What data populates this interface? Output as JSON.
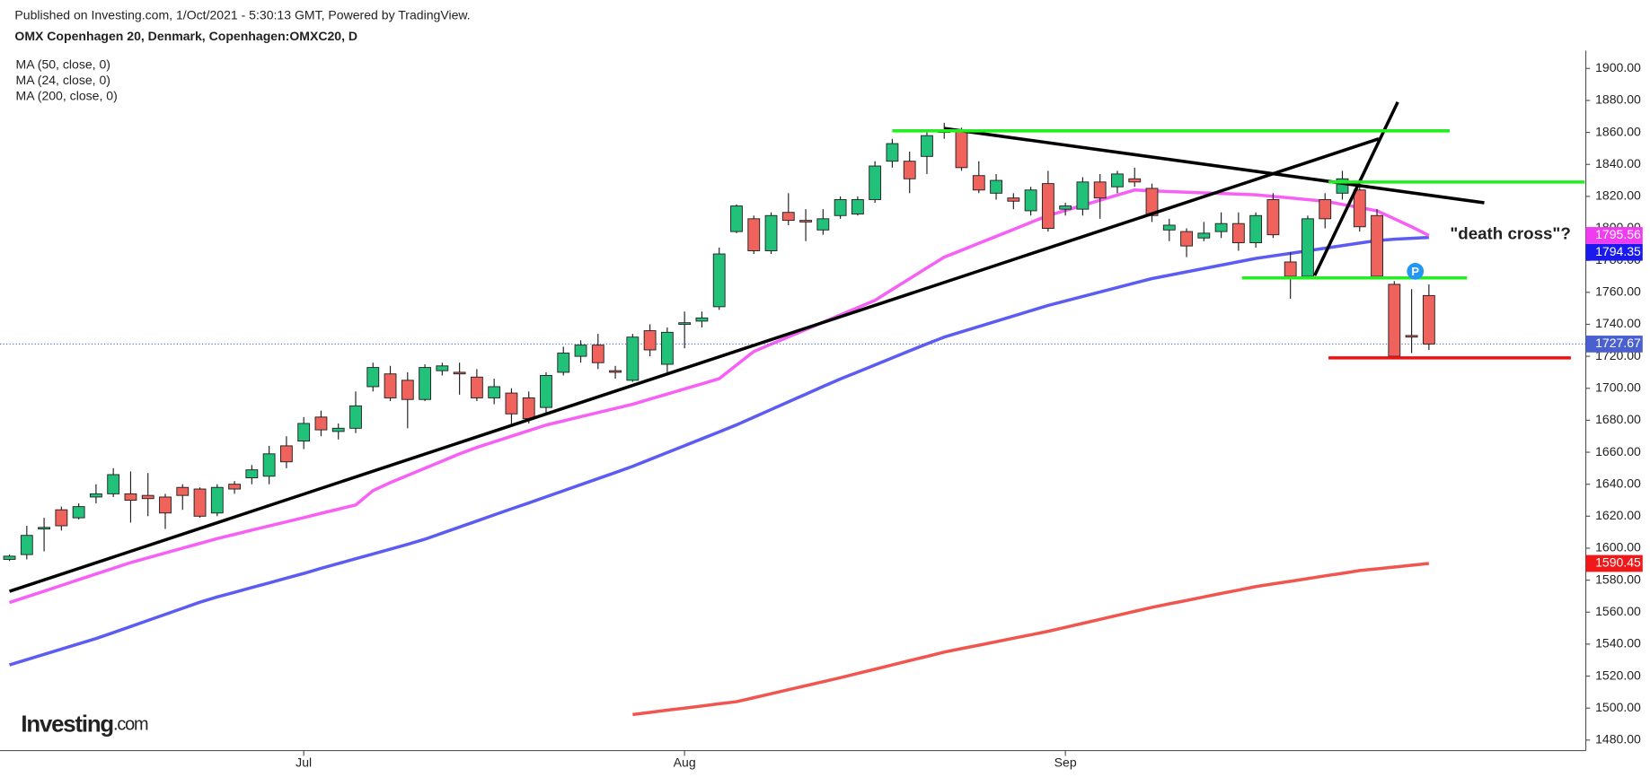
{
  "header": {
    "published": "Published on Investing.com, 1/Oct/2021 - 5:30:13 GMT, Powered by TradingView.",
    "symbol": "OMX Copenhagen 20, Denmark, Copenhagen:OMXC20, D"
  },
  "logo": {
    "brand": "Investing",
    "suffix": ".com"
  },
  "chart_data": {
    "type": "candlestick",
    "categories": [
      null,
      null,
      null,
      null,
      null,
      null,
      null,
      null,
      null,
      null,
      null,
      null,
      null,
      null,
      null,
      null,
      null,
      "Jul",
      null,
      null,
      null,
      null,
      null,
      null,
      null,
      null,
      null,
      null,
      null,
      null,
      null,
      null,
      null,
      null,
      null,
      null,
      null,
      null,
      null,
      "Aug",
      null,
      null,
      null,
      null,
      null,
      null,
      null,
      null,
      null,
      null,
      null,
      null,
      null,
      null,
      null,
      null,
      null,
      null,
      null,
      null,
      null,
      "Sep",
      null,
      null,
      null,
      null,
      null,
      null,
      null,
      null,
      null,
      null,
      null,
      null,
      null,
      null,
      null,
      null,
      null,
      null,
      null,
      null,
      null
    ],
    "open": [
      1593,
      1596,
      1612,
      1624,
      1619,
      1632,
      1634,
      1634,
      1633,
      1632,
      1638,
      1637,
      1622,
      1640,
      1644,
      1645,
      1664,
      1667,
      1682,
      1673,
      1675,
      1701,
      1709,
      1705,
      1693,
      1711,
      1710,
      1707,
      1694,
      1697,
      1694,
      1688,
      1710,
      1720,
      1727,
      1711,
      1705,
      1736,
      1715,
      1740,
      1742,
      1751,
      1798,
      1806,
      1786,
      1810,
      1805,
      1799,
      1808,
      1809,
      1818,
      1842,
      1842,
      1845,
      1860,
      1861,
      1833,
      1822,
      1819,
      1811,
      1828,
      1812,
      1812,
      1829,
      1826,
      1831,
      1825,
      1799,
      1798,
      1794,
      1798,
      1803,
      1791,
      1818,
      1779,
      1770,
      1818,
      1822,
      1824,
      1808,
      1765,
      1733,
      1758
    ],
    "high": [
      1596,
      1614,
      1619,
      1626,
      1628,
      1640,
      1650,
      1648,
      1647,
      1634,
      1640,
      1638,
      1640,
      1642,
      1652,
      1664,
      1670,
      1682,
      1686,
      1678,
      1698,
      1716,
      1714,
      1710,
      1715,
      1716,
      1716,
      1712,
      1706,
      1700,
      1698,
      1710,
      1726,
      1730,
      1734,
      1714,
      1734,
      1740,
      1738,
      1748,
      1748,
      1788,
      1815,
      1808,
      1810,
      1822,
      1812,
      1812,
      1820,
      1820,
      1842,
      1856,
      1848,
      1860,
      1866,
      1863,
      1842,
      1834,
      1822,
      1826,
      1836,
      1816,
      1832,
      1834,
      1836,
      1838,
      1828,
      1806,
      1800,
      1804,
      1810,
      1810,
      1810,
      1822,
      1785,
      1808,
      1822,
      1836,
      1830,
      1812,
      1767,
      1762,
      1765
    ],
    "low": [
      1592,
      1593,
      1598,
      1611,
      1618,
      1628,
      1632,
      1616,
      1620,
      1612,
      1624,
      1619,
      1620,
      1634,
      1640,
      1640,
      1650,
      1662,
      1670,
      1668,
      1672,
      1698,
      1692,
      1675,
      1692,
      1708,
      1696,
      1692,
      1690,
      1676,
      1678,
      1684,
      1708,
      1716,
      1712,
      1706,
      1704,
      1720,
      1710,
      1725,
      1738,
      1749,
      1797,
      1784,
      1784,
      1802,
      1792,
      1796,
      1806,
      1808,
      1816,
      1838,
      1822,
      1834,
      1856,
      1836,
      1822,
      1818,
      1812,
      1808,
      1798,
      1808,
      1808,
      1806,
      1822,
      1826,
      1804,
      1792,
      1782,
      1792,
      1794,
      1786,
      1788,
      1794,
      1756,
      1768,
      1800,
      1818,
      1798,
      1768,
      1720,
      1722,
      1724
    ],
    "close": [
      1595,
      1608,
      1613,
      1614,
      1626,
      1634,
      1646,
      1630,
      1631,
      1622,
      1633,
      1620,
      1638,
      1637,
      1649,
      1659,
      1654,
      1678,
      1674,
      1675,
      1689,
      1713,
      1694,
      1693,
      1713,
      1714,
      1709,
      1694,
      1701,
      1684,
      1681,
      1708,
      1722,
      1727,
      1716,
      1710,
      1732,
      1724,
      1735,
      1741,
      1744,
      1784,
      1814,
      1786,
      1808,
      1805,
      1804,
      1806,
      1818,
      1818,
      1839,
      1853,
      1831,
      1858,
      1861,
      1838,
      1824,
      1830,
      1817,
      1824,
      1800,
      1814,
      1829,
      1819,
      1834,
      1829,
      1808,
      1802,
      1789,
      1797,
      1803,
      1791,
      1808,
      1796,
      1770,
      1806,
      1806,
      1831,
      1801,
      1770,
      1720,
      1732,
      1727.67
    ],
    "up_color": "#22c17a",
    "down_color": "#f0625c",
    "close_line_color": "#4a5fd0",
    "series": [
      {
        "name": "MA (50, close, 0)",
        "color": "#5c5cf2",
        "values": [
          1527,
          1530.3,
          1533.6,
          1536.9,
          1540.2,
          1543.5,
          1547.2,
          1551,
          1554.8,
          1558.6,
          1562.4,
          1566.2,
          1569.5,
          1572.4,
          1575.4,
          1578.3,
          1581.3,
          1584.2,
          1587.4,
          1590.4,
          1593.4,
          1596.4,
          1599.4,
          1602.4,
          1605.6,
          1609.4,
          1613.2,
          1617,
          1620.8,
          1624.6,
          1628.3,
          1632.1,
          1635.9,
          1639.7,
          1643.5,
          1647.3,
          1651.2,
          1655.5,
          1659.8,
          1664.1,
          1668.4,
          1672.7,
          1677.1,
          1681.9,
          1686.7,
          1691.5,
          1696.3,
          1701.1,
          1705.8,
          1710.2,
          1714.6,
          1719,
          1723.4,
          1727.8,
          1732,
          1735.3,
          1738.6,
          1741.9,
          1745.2,
          1748.5,
          1751.8,
          1754.6,
          1757.4,
          1760.2,
          1763,
          1765.8,
          1768.6,
          1770.7,
          1772.8,
          1774.9,
          1777,
          1779.1,
          1781.2,
          1782.8,
          1784.4,
          1786,
          1787.6,
          1789.2,
          1790.8,
          1792.4,
          1793.2,
          1793.8,
          1794.35
        ]
      },
      {
        "name": "MA (24, close, 0)",
        "color": "#f760f5",
        "values": [
          1566,
          1569.6,
          1573.1,
          1576.7,
          1580.3,
          1583.9,
          1587.4,
          1591,
          1594,
          1597,
          1600,
          1603,
          1606,
          1608.6,
          1611.3,
          1613.9,
          1616.5,
          1619.1,
          1621.8,
          1624.4,
          1627,
          1636,
          1641,
          1645.5,
          1650,
          1654.5,
          1659,
          1663,
          1666.5,
          1670,
          1673.5,
          1677,
          1679.6,
          1682.2,
          1684.8,
          1687.4,
          1690,
          1693.2,
          1696.4,
          1699.6,
          1702.8,
          1706,
          1714.5,
          1723,
          1727.6,
          1732.1,
          1736.7,
          1741.3,
          1745.9,
          1750.4,
          1755,
          1761.8,
          1768.5,
          1775.3,
          1782,
          1786.3,
          1790.7,
          1795,
          1799.3,
          1803.7,
          1808,
          1811.2,
          1814.4,
          1817.6,
          1820.8,
          1824,
          1823.5,
          1823,
          1822.6,
          1822.2,
          1821.8,
          1821.4,
          1821,
          1820,
          1819,
          1818,
          1817,
          1815,
          1813,
          1811,
          1806,
          1801,
          1795.56
        ]
      },
      {
        "name": "MA (200, close, 0)",
        "color": "#f0554f",
        "values": [
          null,
          null,
          null,
          null,
          null,
          null,
          null,
          null,
          null,
          null,
          null,
          null,
          null,
          null,
          null,
          null,
          null,
          null,
          null,
          null,
          null,
          null,
          null,
          null,
          null,
          null,
          null,
          null,
          null,
          null,
          null,
          null,
          null,
          null,
          null,
          null,
          1496,
          1497.3,
          1498.7,
          1500,
          1501.3,
          1502.7,
          1504,
          1506.5,
          1509,
          1511.5,
          1514,
          1516.5,
          1519,
          1521.7,
          1524.3,
          1527,
          1529.7,
          1532.3,
          1535,
          1537.2,
          1539.3,
          1541.5,
          1543.7,
          1545.8,
          1548,
          1550.5,
          1553,
          1555.5,
          1558,
          1560.5,
          1563,
          1565.2,
          1567.3,
          1569.5,
          1571.7,
          1573.8,
          1576,
          1577.7,
          1579.3,
          1581,
          1582.7,
          1584.3,
          1586,
          1587.1,
          1588.2,
          1589.3,
          1590.45
        ]
      }
    ],
    "tag_colors": [
      "#1a1aee",
      "#f03cf0",
      "#f01818"
    ],
    "drawings": [
      {
        "color": "#000000",
        "points": [
          [
            0,
            1573
          ],
          [
            79.1,
            1856
          ]
        ]
      },
      {
        "color": "#000000",
        "points": [
          [
            54,
            1862.5
          ],
          [
            85.2,
            1816
          ]
        ]
      },
      {
        "color": "#000000",
        "points": [
          [
            75.4,
            1770.5
          ],
          [
            80.2,
            1879
          ]
        ]
      },
      {
        "color": "#22ee22",
        "points": [
          [
            51,
            1861
          ],
          [
            83.2,
            1861
          ]
        ]
      },
      {
        "color": "#22ee22",
        "points": [
          [
            76.2,
            1829
          ],
          [
            91,
            1829
          ]
        ]
      },
      {
        "color": "#22ee22",
        "points": [
          [
            71.2,
            1769
          ],
          [
            84.2,
            1769
          ]
        ]
      },
      {
        "color": "#f01010",
        "points": [
          [
            76.2,
            1719
          ],
          [
            90.2,
            1719
          ]
        ]
      }
    ],
    "annotation": "\"death cross\"?",
    "ylim": [
      1473.4,
      1911.2
    ],
    "yticks": [
      {
        "value": 1480,
        "label": "1480.00"
      },
      {
        "value": 1500,
        "label": "1500.00"
      },
      {
        "value": 1520,
        "label": "1520.00"
      },
      {
        "value": 1540,
        "label": "1540.00"
      },
      {
        "value": 1560,
        "label": "1560.00"
      },
      {
        "value": 1580,
        "label": "1580.00"
      },
      {
        "value": 1600,
        "label": "1600.00"
      },
      {
        "value": 1620,
        "label": "1620.00"
      },
      {
        "value": 1640,
        "label": "1640.00"
      },
      {
        "value": 1660,
        "label": "1660.00"
      },
      {
        "value": 1680,
        "label": "1680.00"
      },
      {
        "value": 1700,
        "label": "1700.00"
      },
      {
        "value": 1720,
        "label": "1720.00"
      },
      {
        "value": 1740,
        "label": "1740.00"
      },
      {
        "value": 1760,
        "label": "1760.00"
      },
      {
        "value": 1780,
        "label": "1780.00"
      },
      {
        "value": 1800,
        "label": "1800.00"
      },
      {
        "value": 1820,
        "label": "1820.00"
      },
      {
        "value": 1840,
        "label": "1840.00"
      },
      {
        "value": 1860,
        "label": "1860.00"
      },
      {
        "value": 1880,
        "label": "1880.00"
      },
      {
        "value": 1900,
        "label": "1900.00"
      }
    ]
  }
}
